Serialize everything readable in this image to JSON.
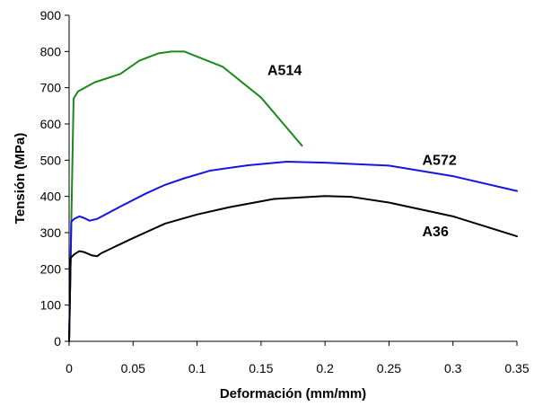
{
  "chart_data": {
    "type": "line",
    "title": "",
    "xlabel": "Deformación (mm/mm)",
    "ylabel": "Tensión (MPa)",
    "xlim": [
      0,
      0.35
    ],
    "ylim": [
      0,
      900
    ],
    "x_ticks": [
      0,
      0.05,
      0.1,
      0.15,
      0.2,
      0.25,
      0.3,
      0.35
    ],
    "x_tick_labels": [
      "0",
      "0.05",
      "0.1",
      "0.15",
      "0.2",
      "0.25",
      "0.3",
      "0.35"
    ],
    "y_ticks": [
      0,
      100,
      200,
      300,
      400,
      500,
      600,
      700,
      800,
      900
    ],
    "y_tick_labels": [
      "0",
      "100",
      "200",
      "300",
      "400",
      "500",
      "600",
      "700",
      "800",
      "900"
    ],
    "grid": false,
    "legend": "none",
    "series": [
      {
        "name": "A514",
        "color": "#1a8a1a",
        "points": [
          [
            0,
            0
          ],
          [
            0.0035,
            670
          ],
          [
            0.007,
            690
          ],
          [
            0.02,
            715
          ],
          [
            0.04,
            738
          ],
          [
            0.055,
            775
          ],
          [
            0.07,
            795
          ],
          [
            0.08,
            800
          ],
          [
            0.09,
            800
          ],
          [
            0.12,
            758
          ],
          [
            0.15,
            673
          ],
          [
            0.182,
            540
          ]
        ]
      },
      {
        "name": "A572",
        "color": "#1515e0",
        "points": [
          [
            0,
            0
          ],
          [
            0.0017,
            330
          ],
          [
            0.004,
            338
          ],
          [
            0.008,
            345
          ],
          [
            0.012,
            340
          ],
          [
            0.016,
            333
          ],
          [
            0.022,
            338
          ],
          [
            0.04,
            372
          ],
          [
            0.06,
            408
          ],
          [
            0.075,
            432
          ],
          [
            0.09,
            450
          ],
          [
            0.11,
            471
          ],
          [
            0.14,
            486
          ],
          [
            0.17,
            496
          ],
          [
            0.2,
            493
          ],
          [
            0.25,
            485
          ],
          [
            0.3,
            456
          ],
          [
            0.35,
            415
          ]
        ]
      },
      {
        "name": "A36",
        "color": "#000000",
        "points": [
          [
            0,
            0
          ],
          [
            0.0012,
            230
          ],
          [
            0.004,
            240
          ],
          [
            0.008,
            249
          ],
          [
            0.012,
            246
          ],
          [
            0.018,
            237
          ],
          [
            0.022,
            235
          ],
          [
            0.025,
            243
          ],
          [
            0.05,
            285
          ],
          [
            0.075,
            325
          ],
          [
            0.1,
            350
          ],
          [
            0.125,
            370
          ],
          [
            0.16,
            393
          ],
          [
            0.2,
            401
          ],
          [
            0.22,
            399
          ],
          [
            0.25,
            383
          ],
          [
            0.3,
            345
          ],
          [
            0.35,
            290
          ]
        ]
      }
    ],
    "annotations": [
      {
        "text": "A514",
        "series": "A514",
        "x": 0.155,
        "y": 735
      },
      {
        "text": "A572",
        "series": "A572",
        "x": 0.276,
        "y": 487
      },
      {
        "text": "A36",
        "series": "A36",
        "x": 0.276,
        "y": 290
      }
    ]
  }
}
